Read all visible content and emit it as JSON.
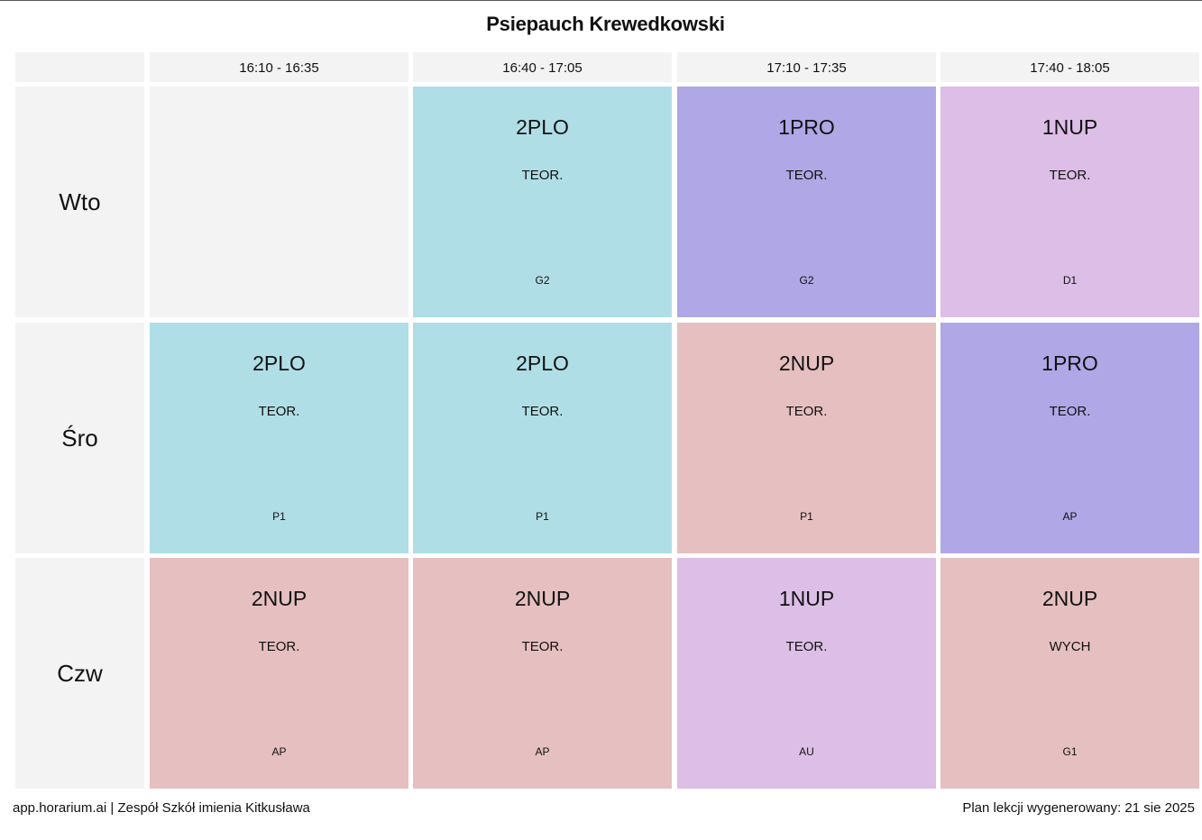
{
  "title": "Psiepauch Krewedkowski",
  "time_slots": [
    "16:10 - 16:35",
    "16:40 - 17:05",
    "17:10 - 17:35",
    "17:40 - 18:05"
  ],
  "days": [
    {
      "label": "Wto",
      "lessons": [
        null,
        {
          "class": "2PLO",
          "type": "TEOR.",
          "room": "G2",
          "color": "#b0dee6"
        },
        {
          "class": "1PRO",
          "type": "TEOR.",
          "room": "G2",
          "color": "#b0a7e6"
        },
        {
          "class": "1NUP",
          "type": "TEOR.",
          "room": "D1",
          "color": "#dcbee6"
        }
      ]
    },
    {
      "label": "Śro",
      "lessons": [
        {
          "class": "2PLO",
          "type": "TEOR.",
          "room": "P1",
          "color": "#b0dee6"
        },
        {
          "class": "2PLO",
          "type": "TEOR.",
          "room": "P1",
          "color": "#b0dee6"
        },
        {
          "class": "2NUP",
          "type": "TEOR.",
          "room": "P1",
          "color": "#e6bfc0"
        },
        {
          "class": "1PRO",
          "type": "TEOR.",
          "room": "AP",
          "color": "#b0a7e6"
        }
      ]
    },
    {
      "label": "Czw",
      "lessons": [
        {
          "class": "2NUP",
          "type": "TEOR.",
          "room": "AP",
          "color": "#e6bfc0"
        },
        {
          "class": "2NUP",
          "type": "TEOR.",
          "room": "AP",
          "color": "#e6bfc0"
        },
        {
          "class": "1NUP",
          "type": "TEOR.",
          "room": "AU",
          "color": "#dcbee6"
        },
        {
          "class": "2NUP",
          "type": "WYCH",
          "room": "G1",
          "color": "#e6bfc0"
        }
      ]
    }
  ],
  "empty_cell_color": "#f3f3f3",
  "footer": {
    "left": "app.horarium.ai | Zespół Szkół imienia Kitkusława",
    "right": "Plan lekcji wygenerowany: 21 sie 2025"
  }
}
